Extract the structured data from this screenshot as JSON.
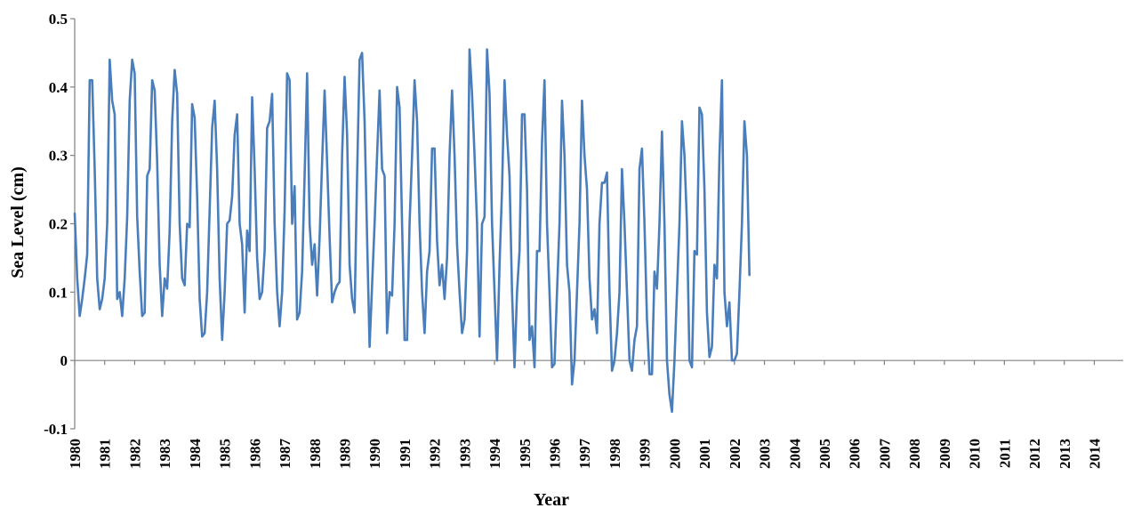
{
  "chart_data": {
    "type": "line",
    "xlabel": "Year",
    "ylabel": "Sea Level (cm)",
    "ylim": [
      -0.1,
      0.5
    ],
    "y_ticks": [
      "0.5",
      "0.4",
      "0.3",
      "0.2",
      "0.1",
      "0",
      "-0.1"
    ],
    "x_ticks": [
      "1980",
      "1981",
      "1982",
      "1983",
      "1984",
      "1985",
      "1986",
      "1987",
      "1988",
      "1989",
      "1990",
      "1991",
      "1992",
      "1993",
      "1994",
      "1995",
      "1996",
      "1997",
      "1998",
      "1999",
      "2000",
      "2001",
      "2002",
      "2003",
      "2004",
      "2005",
      "2006",
      "2007",
      "2008",
      "2009",
      "2010",
      "2011",
      "2012",
      "2013",
      "2014"
    ],
    "grid": false,
    "legend": "none",
    "series": [
      {
        "color": "#4a7ebb",
        "start_year": 1980,
        "values": [
          0.215,
          0.12,
          0.065,
          0.09,
          0.12,
          0.155,
          0.41,
          0.41,
          0.28,
          0.12,
          0.075,
          0.09,
          0.12,
          0.2,
          0.44,
          0.38,
          0.36,
          0.09,
          0.1,
          0.065,
          0.12,
          0.21,
          0.38,
          0.44,
          0.42,
          0.21,
          0.13,
          0.065,
          0.07,
          0.27,
          0.28,
          0.41,
          0.395,
          0.29,
          0.14,
          0.065,
          0.12,
          0.105,
          0.19,
          0.35,
          0.425,
          0.39,
          0.2,
          0.12,
          0.11,
          0.2,
          0.195,
          0.375,
          0.355,
          0.24,
          0.09,
          0.035,
          0.04,
          0.1,
          0.22,
          0.34,
          0.38,
          0.28,
          0.12,
          0.03,
          0.1,
          0.2,
          0.205,
          0.24,
          0.33,
          0.36,
          0.2,
          0.17,
          0.07,
          0.19,
          0.16,
          0.385,
          0.28,
          0.15,
          0.09,
          0.1,
          0.16,
          0.34,
          0.35,
          0.39,
          0.2,
          0.1,
          0.05,
          0.1,
          0.22,
          0.42,
          0.41,
          0.2,
          0.255,
          0.06,
          0.07,
          0.13,
          0.27,
          0.42,
          0.2,
          0.14,
          0.17,
          0.095,
          0.18,
          0.29,
          0.395,
          0.29,
          0.18,
          0.085,
          0.1,
          0.11,
          0.115,
          0.3,
          0.415,
          0.33,
          0.14,
          0.09,
          0.07,
          0.27,
          0.44,
          0.45,
          0.35,
          0.18,
          0.02,
          0.11,
          0.2,
          0.3,
          0.395,
          0.28,
          0.27,
          0.04,
          0.1,
          0.095,
          0.2,
          0.4,
          0.37,
          0.2,
          0.03,
          0.03,
          0.2,
          0.3,
          0.41,
          0.35,
          0.2,
          0.1,
          0.04,
          0.13,
          0.16,
          0.31,
          0.31,
          0.175,
          0.11,
          0.14,
          0.09,
          0.15,
          0.3,
          0.395,
          0.3,
          0.17,
          0.1,
          0.04,
          0.06,
          0.16,
          0.455,
          0.39,
          0.3,
          0.2,
          0.035,
          0.2,
          0.21,
          0.455,
          0.39,
          0.2,
          0.1,
          0.0,
          0.14,
          0.25,
          0.41,
          0.33,
          0.27,
          0.1,
          -0.01,
          0.1,
          0.16,
          0.36,
          0.36,
          0.25,
          0.03,
          0.05,
          -0.01,
          0.16,
          0.16,
          0.32,
          0.41,
          0.2,
          0.1,
          -0.01,
          -0.005,
          0.1,
          0.2,
          0.38,
          0.3,
          0.14,
          0.1,
          -0.035,
          0.0,
          0.1,
          0.2,
          0.38,
          0.3,
          0.25,
          0.12,
          0.06,
          0.075,
          0.04,
          0.2,
          0.26,
          0.26,
          0.275,
          0.1,
          -0.015,
          0.0,
          0.04,
          0.1,
          0.28,
          0.2,
          0.1,
          0.0,
          -0.015,
          0.03,
          0.05,
          0.28,
          0.31,
          0.2,
          0.06,
          -0.02,
          -0.02,
          0.13,
          0.105,
          0.2,
          0.335,
          0.2,
          0.0,
          -0.05,
          -0.075,
          0.0,
          0.1,
          0.2,
          0.35,
          0.3,
          0.2,
          0.0,
          -0.01,
          0.16,
          0.155,
          0.37,
          0.36,
          0.25,
          0.07,
          0.005,
          0.02,
          0.14,
          0.12,
          0.3,
          0.41,
          0.1,
          0.05,
          0.085,
          0.0,
          0.0,
          0.01,
          0.1,
          0.2,
          0.35,
          0.3,
          0.125
        ]
      }
    ]
  }
}
